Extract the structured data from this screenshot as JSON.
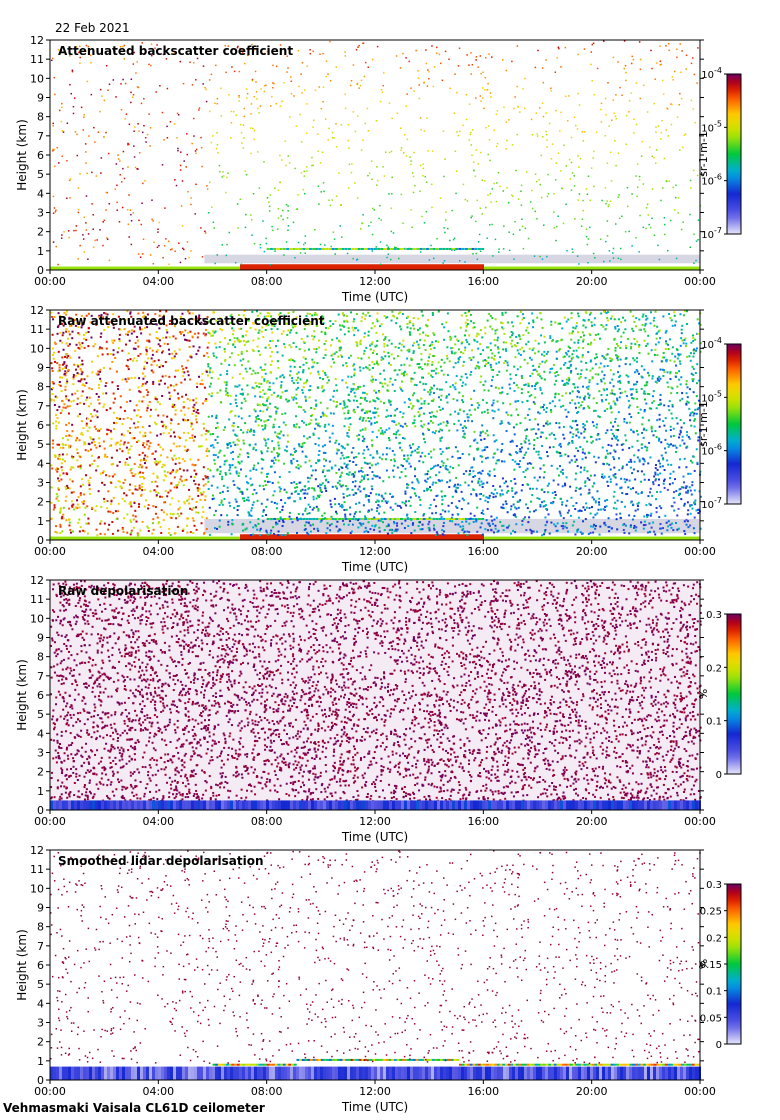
{
  "header": {
    "date": "22 Feb 2021"
  },
  "footer": {
    "caption": "Vehmasmaki Vaisala CL61D ceilometer"
  },
  "chart_data": [
    {
      "type": "heatmap",
      "title": "Attenuated backscatter coefficient",
      "xlabel": "Time (UTC)",
      "ylabel": "Height (km)",
      "xticks": [
        "00:00",
        "04:00",
        "08:00",
        "12:00",
        "16:00",
        "20:00",
        "00:00"
      ],
      "yticks": [
        "0",
        "1",
        "2",
        "3",
        "4",
        "5",
        "6",
        "7",
        "8",
        "9",
        "10",
        "11",
        "12"
      ],
      "xlim": [
        0,
        24
      ],
      "ylim": [
        0,
        12
      ],
      "colorbar": {
        "unit": "sr-1 m-1",
        "scale": "log",
        "ticks": [
          "10^-7",
          "10^-6",
          "10^-5",
          "10^-4"
        ],
        "range": [
          1e-07,
          0.0001
        ]
      },
      "pattern": "backscatter"
    },
    {
      "type": "heatmap",
      "title": "Raw attenuated backscatter coefficient",
      "xlabel": "Time (UTC)",
      "ylabel": "Height (km)",
      "xticks": [
        "00:00",
        "04:00",
        "08:00",
        "12:00",
        "16:00",
        "20:00",
        "00:00"
      ],
      "yticks": [
        "0",
        "1",
        "2",
        "3",
        "4",
        "5",
        "6",
        "7",
        "8",
        "9",
        "10",
        "11",
        "12"
      ],
      "xlim": [
        0,
        24
      ],
      "ylim": [
        0,
        12
      ],
      "colorbar": {
        "unit": "sr-1 m-1",
        "scale": "log",
        "ticks": [
          "10^-7",
          "10^-6",
          "10^-5",
          "10^-4"
        ],
        "range": [
          1e-07,
          0.0001
        ]
      },
      "pattern": "raw_backscatter"
    },
    {
      "type": "heatmap",
      "title": "Raw depolarisation",
      "xlabel": "Time (UTC)",
      "ylabel": "Height (km)",
      "xticks": [
        "00:00",
        "04:00",
        "08:00",
        "12:00",
        "16:00",
        "20:00",
        "00:00"
      ],
      "yticks": [
        "0",
        "1",
        "2",
        "3",
        "4",
        "5",
        "6",
        "7",
        "8",
        "9",
        "10",
        "11",
        "12"
      ],
      "xlim": [
        0,
        24
      ],
      "ylim": [
        0,
        12
      ],
      "colorbar": {
        "unit": "%",
        "scale": "linear",
        "ticks": [
          "0",
          "0.1",
          "0.2",
          "0.3"
        ],
        "range": [
          0,
          0.3
        ]
      },
      "pattern": "raw_depol"
    },
    {
      "type": "heatmap",
      "title": "Smoothed lidar depolarisation",
      "xlabel": "Time (UTC)",
      "ylabel": "Height (km)",
      "xticks": [
        "00:00",
        "04:00",
        "08:00",
        "12:00",
        "16:00",
        "20:00",
        "00:00"
      ],
      "yticks": [
        "0",
        "1",
        "2",
        "3",
        "4",
        "5",
        "6",
        "7",
        "8",
        "9",
        "10",
        "11",
        "12"
      ],
      "xlim": [
        0,
        24
      ],
      "ylim": [
        0,
        12
      ],
      "colorbar": {
        "unit": "%",
        "scale": "linear",
        "ticks": [
          "0",
          "0.05",
          "0.1",
          "0.15",
          "0.2",
          "0.25",
          "0.3"
        ],
        "range": [
          0,
          0.3
        ]
      },
      "pattern": "smooth_depol"
    }
  ]
}
